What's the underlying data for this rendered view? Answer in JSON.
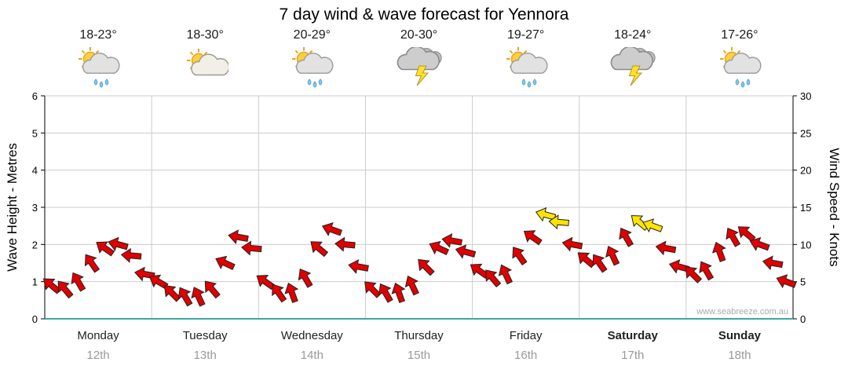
{
  "title": "7 day wind & wave forecast for Yennora",
  "watermark": "www.seabreeze.com.au",
  "days": [
    {
      "name": "Monday",
      "date": "12th",
      "temp": "18-23°",
      "icon": "sun-cloud-rain",
      "bold": false
    },
    {
      "name": "Tuesday",
      "date": "13th",
      "temp": "18-30°",
      "icon": "sun-cloud",
      "bold": false
    },
    {
      "name": "Wednesday",
      "date": "14th",
      "temp": "20-29°",
      "icon": "sun-cloud-rain",
      "bold": false
    },
    {
      "name": "Thursday",
      "date": "15th",
      "temp": "20-30°",
      "icon": "storm",
      "bold": false
    },
    {
      "name": "Friday",
      "date": "16th",
      "temp": "19-27°",
      "icon": "sun-cloud-rain",
      "bold": false
    },
    {
      "name": "Saturday",
      "date": "17th",
      "temp": "18-24°",
      "icon": "storm",
      "bold": true
    },
    {
      "name": "Sunday",
      "date": "18th",
      "temp": "17-26°",
      "icon": "sun-cloud-rain",
      "bold": true
    }
  ],
  "chart_data": {
    "type": "wind-arrow-line",
    "title": "7 day wind & wave forecast for Yennora",
    "categories": [
      "Monday 12th",
      "Tuesday 13th",
      "Wednesday 14th",
      "Thursday 15th",
      "Friday 16th",
      "Saturday 17th",
      "Sunday 18th"
    ],
    "points_per_day": 8,
    "interval_hours": 3,
    "left_axis": {
      "label": "Wave Height - Metres",
      "min": 0,
      "max": 6,
      "ticks": [
        0,
        1,
        2,
        3,
        4,
        5,
        6
      ]
    },
    "right_axis": {
      "label": "Wind Speed - Knots",
      "min": 0,
      "max": 30,
      "ticks": [
        0,
        5,
        10,
        15,
        20,
        25,
        30
      ]
    },
    "wind_knots": [
      4.5,
      4,
      5,
      7.5,
      9.5,
      10,
      8.5,
      6,
      5,
      3.5,
      3,
      3,
      4,
      7.5,
      11,
      9.5,
      5,
      3.5,
      3.5,
      5.5,
      9.5,
      12,
      10,
      7,
      4,
      3.5,
      3.5,
      4.5,
      7,
      9.5,
      10.5,
      9,
      6.5,
      5.5,
      6,
      8.5,
      11,
      14,
      13,
      10,
      8,
      7.5,
      8.5,
      11,
      13,
      12.5,
      9.5,
      7,
      6,
      6.5,
      9,
      11,
      11.5,
      10,
      7.5,
      5
    ],
    "arrow_dir_deg": [
      220,
      230,
      240,
      235,
      215,
      195,
      185,
      190,
      210,
      225,
      240,
      245,
      230,
      205,
      190,
      185,
      215,
      235,
      250,
      240,
      220,
      200,
      185,
      190,
      225,
      240,
      250,
      245,
      225,
      205,
      190,
      195,
      215,
      230,
      245,
      235,
      215,
      195,
      185,
      190,
      220,
      235,
      245,
      240,
      220,
      200,
      190,
      195,
      225,
      240,
      250,
      240,
      220,
      200,
      190,
      200
    ],
    "arrow_color_rule": {
      "yellow_at_or_above_knots": 12.5
    },
    "colors": {
      "red": "#E00000",
      "yellow": "#FFE400",
      "outline": "#222222",
      "gridline": "#cccccc",
      "baseline": "#3BA8A8",
      "axis": "#000000"
    },
    "grid": "on",
    "legend": "none"
  }
}
